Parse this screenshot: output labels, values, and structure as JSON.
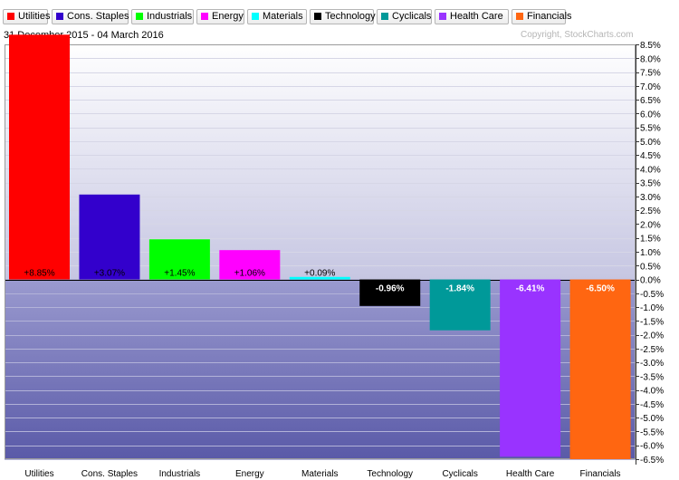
{
  "header": {
    "date_range": "31 December 2015 - 04 March 2016",
    "copyright": "Copyright, StockCharts.com"
  },
  "chart_data": {
    "type": "bar",
    "categories": [
      "Utilities",
      "Cons. Staples",
      "Industrials",
      "Energy",
      "Materials",
      "Technology",
      "Cyclicals",
      "Health Care",
      "Financials"
    ],
    "values": [
      8.85,
      3.07,
      1.45,
      1.06,
      0.09,
      -0.96,
      -1.84,
      -6.41,
      -6.5
    ],
    "value_labels": [
      "+8.85%",
      "+3.07%",
      "+1.45%",
      "+1.06%",
      "+0.09%",
      "-0.96%",
      "-1.84%",
      "-6.41%",
      "-6.50%"
    ],
    "colors": [
      "#ff0000",
      "#3300cc",
      "#00ff00",
      "#ff00ff",
      "#00ffff",
      "#000000",
      "#009999",
      "#9933ff",
      "#ff6611"
    ],
    "legend": [
      "Utilities",
      "Cons. Staples",
      "Industrials",
      "Energy",
      "Materials",
      "Technology",
      "Cyclicals",
      "Health Care",
      "Financials"
    ],
    "legend_placement": "top",
    "ylim": [
      -6.5,
      8.5
    ],
    "yticks": [
      8.5,
      8.0,
      7.5,
      7.0,
      6.5,
      6.0,
      5.5,
      5.0,
      4.5,
      4.0,
      3.5,
      3.0,
      2.5,
      2.0,
      1.5,
      1.0,
      0.5,
      0.0,
      -0.5,
      -1.0,
      -1.5,
      -2.0,
      -2.5,
      -3.0,
      -3.5,
      -4.0,
      -4.5,
      -5.0,
      -5.5,
      -6.0,
      -6.5
    ],
    "ytick_labels": [
      "8.5%",
      "8.0%",
      "7.5%",
      "7.0%",
      "6.5%",
      "6.0%",
      "5.5%",
      "5.0%",
      "4.5%",
      "4.0%",
      "3.5%",
      "3.0%",
      "2.5%",
      "2.0%",
      "1.5%",
      "1.0%",
      "0.5%",
      "0.0%",
      "-0.5%",
      "-1.0%",
      "-1.5%",
      "-2.0%",
      "-2.5%",
      "-3.0%",
      "-3.5%",
      "-4.0%",
      "-4.5%",
      "-5.0%",
      "-5.5%",
      "-6.0%",
      "-6.5%"
    ],
    "grid": true,
    "title": "",
    "xlabel": "",
    "ylabel": ""
  }
}
